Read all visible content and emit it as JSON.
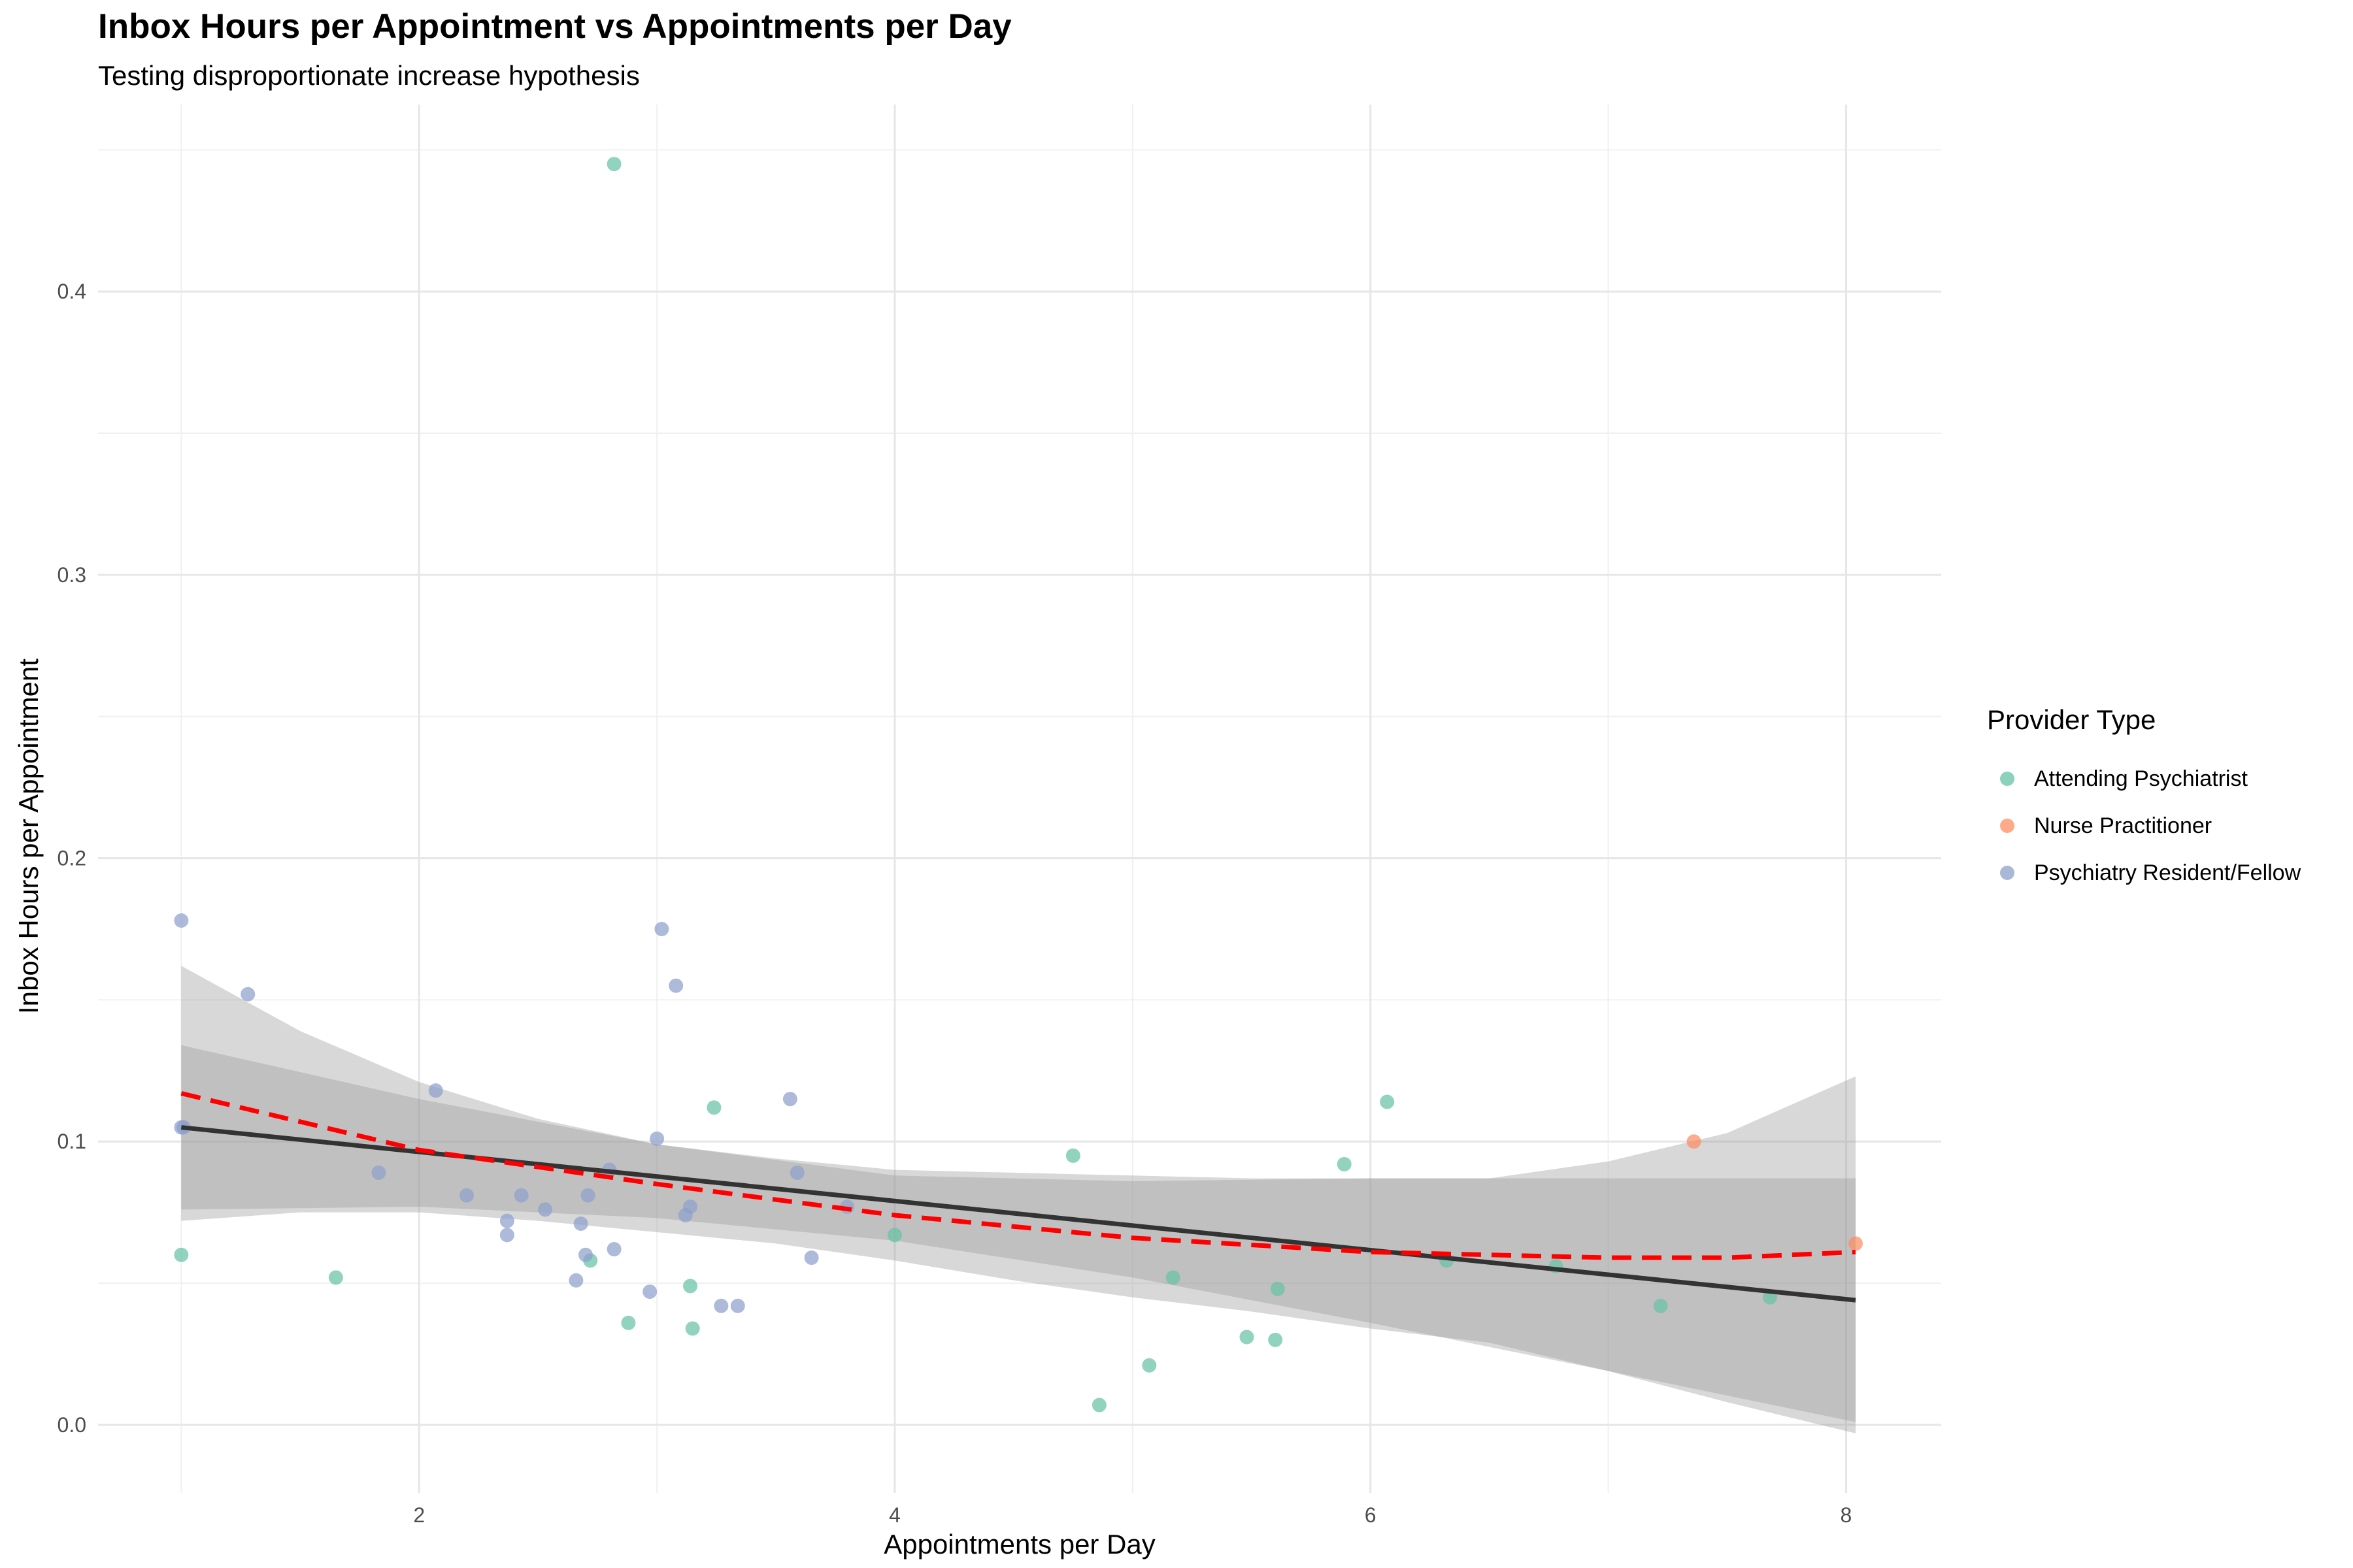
{
  "chart_data": {
    "type": "scatter",
    "title": "Inbox Hours per Appointment vs Appointments per Day",
    "subtitle": "Testing disproportionate increase hypothesis",
    "xlabel": "Appointments per Day",
    "ylabel": "Inbox Hours per Appointment",
    "xlim": [
      0.65,
      8.4
    ],
    "ylim": [
      -0.024,
      0.466
    ],
    "x_ticks": [
      2,
      4,
      6,
      8
    ],
    "x_tick_labels": [
      "2",
      "4",
      "6",
      "8"
    ],
    "y_ticks": [
      0.0,
      0.1,
      0.2,
      0.3,
      0.4
    ],
    "y_tick_labels": [
      "0.0",
      "0.1",
      "0.2",
      "0.3",
      "0.4"
    ],
    "grid": true,
    "legend": {
      "title": "Provider Type",
      "position": "right",
      "entries": [
        "Attending Psychiatrist",
        "Nurse Practitioner",
        "Psychiatry Resident/Fellow"
      ]
    },
    "colors": {
      "Attending Psychiatrist": "#66c2a5",
      "Nurse Practitioner": "#fc8d62",
      "Psychiatry Resident/Fellow": "#8da0cb",
      "linear_fit": "#333333",
      "loess_fit": "#ff0000",
      "ribbon": "#999999"
    },
    "series": [
      {
        "name": "Attending Psychiatrist",
        "points": [
          [
            1.0,
            0.06
          ],
          [
            1.65,
            0.052
          ],
          [
            2.72,
            0.058
          ],
          [
            2.82,
            0.445
          ],
          [
            2.88,
            0.036
          ],
          [
            3.14,
            0.049
          ],
          [
            3.15,
            0.034
          ],
          [
            3.24,
            0.112
          ],
          [
            4.0,
            0.067
          ],
          [
            4.75,
            0.095
          ],
          [
            4.86,
            0.007
          ],
          [
            5.07,
            0.021
          ],
          [
            5.17,
            0.052
          ],
          [
            5.48,
            0.031
          ],
          [
            5.6,
            0.03
          ],
          [
            5.61,
            0.048
          ],
          [
            5.89,
            0.092
          ],
          [
            6.07,
            0.114
          ],
          [
            6.32,
            0.058
          ],
          [
            6.78,
            0.056
          ],
          [
            7.22,
            0.042
          ],
          [
            7.68,
            0.045
          ]
        ]
      },
      {
        "name": "Nurse Practitioner",
        "points": [
          [
            7.36,
            0.1
          ],
          [
            8.04,
            0.064
          ]
        ]
      },
      {
        "name": "Psychiatry Resident/Fellow",
        "points": [
          [
            1.0,
            0.178
          ],
          [
            1.0,
            0.105
          ],
          [
            1.01,
            0.105
          ],
          [
            1.28,
            0.152
          ],
          [
            1.83,
            0.089
          ],
          [
            2.07,
            0.118
          ],
          [
            2.2,
            0.081
          ],
          [
            2.37,
            0.072
          ],
          [
            2.37,
            0.067
          ],
          [
            2.43,
            0.081
          ],
          [
            2.53,
            0.076
          ],
          [
            2.66,
            0.051
          ],
          [
            2.68,
            0.071
          ],
          [
            2.7,
            0.06
          ],
          [
            2.71,
            0.081
          ],
          [
            2.8,
            0.09
          ],
          [
            2.82,
            0.062
          ],
          [
            2.97,
            0.047
          ],
          [
            3.0,
            0.101
          ],
          [
            3.02,
            0.175
          ],
          [
            3.08,
            0.155
          ],
          [
            3.12,
            0.074
          ],
          [
            3.14,
            0.077
          ],
          [
            3.27,
            0.042
          ],
          [
            3.34,
            0.042
          ],
          [
            3.56,
            0.115
          ],
          [
            3.59,
            0.089
          ],
          [
            3.65,
            0.059
          ],
          [
            3.8,
            0.077
          ]
        ]
      }
    ],
    "lines": [
      {
        "name": "linear_fit",
        "style": "solid",
        "points": [
          [
            1.0,
            0.105
          ],
          [
            8.04,
            0.044
          ]
        ]
      },
      {
        "name": "loess_fit",
        "style": "dashed",
        "points": [
          [
            1.0,
            0.117
          ],
          [
            2.0,
            0.097
          ],
          [
            3.0,
            0.085
          ],
          [
            4.0,
            0.074
          ],
          [
            5.0,
            0.066
          ],
          [
            6.0,
            0.061
          ],
          [
            7.0,
            0.059
          ],
          [
            7.5,
            0.059
          ],
          [
            8.04,
            0.061
          ]
        ]
      }
    ],
    "bands": [
      {
        "name": "loess_ci",
        "upper": [
          [
            1.0,
            0.162
          ],
          [
            1.5,
            0.139
          ],
          [
            2.0,
            0.121
          ],
          [
            2.5,
            0.108
          ],
          [
            3.0,
            0.099
          ],
          [
            3.5,
            0.094
          ],
          [
            4.0,
            0.09
          ],
          [
            5.0,
            0.088
          ],
          [
            5.5,
            0.087
          ],
          [
            6.0,
            0.087
          ],
          [
            6.5,
            0.087
          ],
          [
            7.0,
            0.093
          ],
          [
            7.5,
            0.103
          ],
          [
            8.04,
            0.123
          ]
        ],
        "lower": [
          [
            1.0,
            0.072
          ],
          [
            1.5,
            0.075
          ],
          [
            2.0,
            0.075
          ],
          [
            2.5,
            0.072
          ],
          [
            3.0,
            0.068
          ],
          [
            3.5,
            0.064
          ],
          [
            4.0,
            0.058
          ],
          [
            4.5,
            0.051
          ],
          [
            5.0,
            0.045
          ],
          [
            5.5,
            0.04
          ],
          [
            6.0,
            0.034
          ],
          [
            6.5,
            0.029
          ],
          [
            7.0,
            0.019
          ],
          [
            7.5,
            0.008
          ],
          [
            8.04,
            -0.003
          ]
        ]
      },
      {
        "name": "linear_ci",
        "upper": [
          [
            1.0,
            0.134
          ],
          [
            2.0,
            0.115
          ],
          [
            3.0,
            0.099
          ],
          [
            4.0,
            0.088
          ],
          [
            5.0,
            0.086
          ],
          [
            6.0,
            0.087
          ],
          [
            7.0,
            0.087
          ],
          [
            8.04,
            0.087
          ]
        ],
        "lower": [
          [
            1.0,
            0.076
          ],
          [
            2.0,
            0.077
          ],
          [
            3.0,
            0.073
          ],
          [
            4.0,
            0.065
          ],
          [
            5.0,
            0.052
          ],
          [
            6.0,
            0.036
          ],
          [
            7.0,
            0.019
          ],
          [
            8.04,
            0.001
          ]
        ]
      }
    ]
  }
}
